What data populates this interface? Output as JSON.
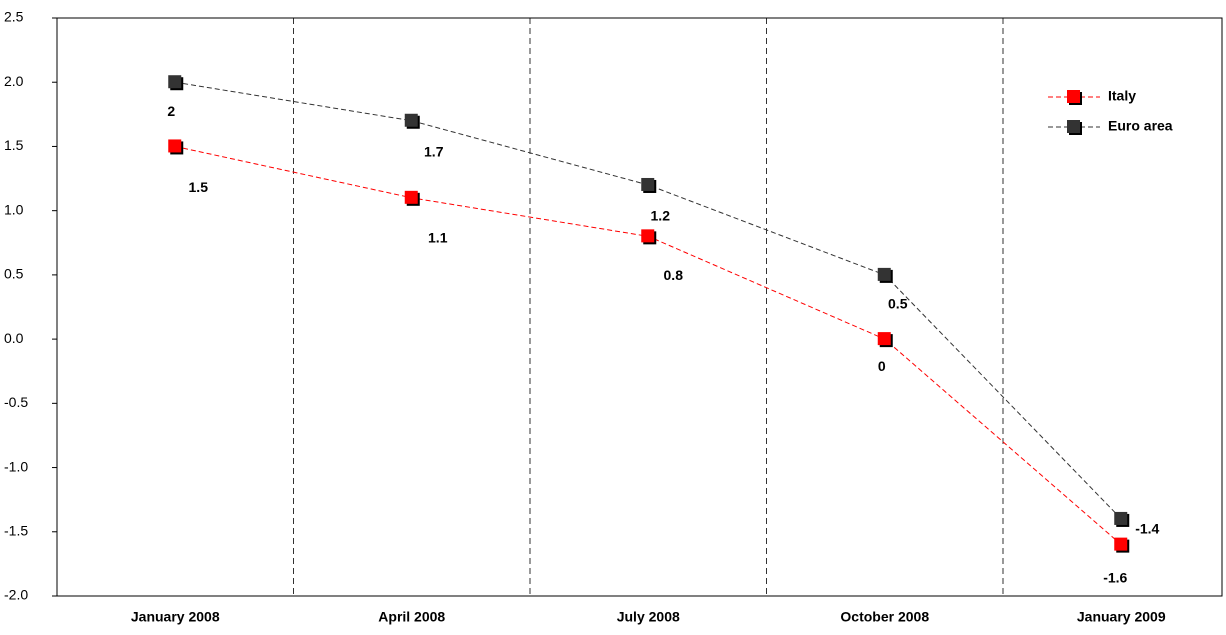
{
  "chart_data": {
    "type": "line",
    "categories": [
      "January 2008",
      "April 2008",
      "July 2008",
      "October 2008",
      "January 2009"
    ],
    "series": [
      {
        "name": "Italy",
        "color": "#ff0000",
        "values": [
          1.5,
          1.1,
          0.8,
          0,
          -1.6
        ]
      },
      {
        "name": "Euro area",
        "color": "#333333",
        "values": [
          2,
          1.7,
          1.2,
          0.5,
          -1.4
        ]
      }
    ],
    "ylim": [
      -2,
      2.5
    ],
    "yticks": [
      {
        "value": -2,
        "label": "-2.0"
      },
      -1.5,
      {
        "value": -1,
        "label": "-1.0"
      },
      -0.5,
      {
        "value": 0,
        "label": "0.0"
      },
      0.5,
      {
        "value": 1,
        "label": "1.0"
      },
      1.5,
      {
        "value": 2,
        "label": "2.0"
      },
      2.5
    ],
    "legend": "upper right"
  }
}
